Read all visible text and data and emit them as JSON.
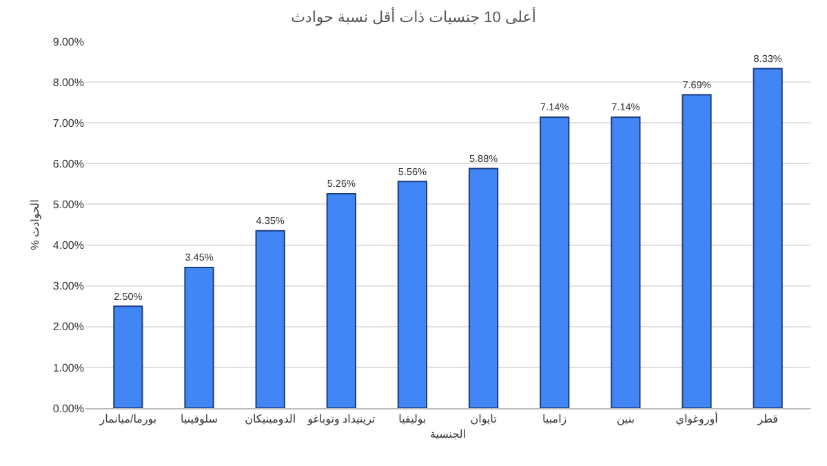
{
  "chart_data": {
    "type": "bar",
    "title": "أعلى 10 جنسيات ذات أقل نسبة حوادث",
    "xlabel": "الجنسية",
    "ylabel": "% الحوادث",
    "categories": [
      "بورما/ميانمار",
      "سلوفينيا",
      "الدومينيكان",
      "ترينيداد وتوباغو",
      "بوليفيا",
      "تايوان",
      "زامبيا",
      "بنين",
      "أوروغواي",
      "قطر"
    ],
    "values": [
      2.5,
      3.45,
      4.35,
      5.26,
      5.56,
      5.88,
      7.14,
      7.14,
      7.69,
      8.33
    ],
    "value_labels": [
      "2.50%",
      "3.45%",
      "4.35%",
      "5.26%",
      "5.56%",
      "5.88%",
      "7.14%",
      "7.14%",
      "7.69%",
      "8.33%"
    ],
    "color": "#4285f4",
    "ylim": [
      0,
      9
    ],
    "yticks": [
      {
        "value": 0,
        "label": "0.00%"
      },
      {
        "value": 1,
        "label": "1.00%"
      },
      {
        "value": 2,
        "label": "2.00%"
      },
      {
        "value": 3,
        "label": "3.00%"
      },
      {
        "value": 4,
        "label": "4.00%"
      },
      {
        "value": 5,
        "label": "5.00%"
      },
      {
        "value": 6,
        "label": "6.00%"
      },
      {
        "value": 7,
        "label": "7.00%"
      },
      {
        "value": 8,
        "label": "8.00%"
      },
      {
        "value": 9,
        "label": "9.00%"
      }
    ],
    "grid": "y"
  }
}
